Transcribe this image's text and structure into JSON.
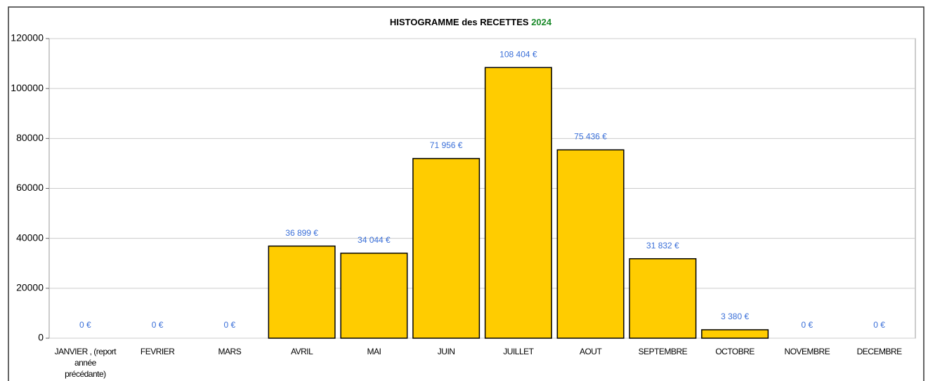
{
  "chart_data": {
    "type": "bar",
    "title": "HISTOGRAMME des RECETTES",
    "title_highlight": "2024",
    "categories": [
      "JANVIER , (report année précédante)",
      "FEVRIER",
      "MARS",
      "AVRIL",
      "MAI",
      "JUIN",
      "JUILLET",
      "AOUT",
      "SEPTEMBRE",
      "OCTOBRE",
      "NOVEMBRE",
      "DECEMBRE"
    ],
    "values": [
      0,
      0,
      0,
      36899,
      34044,
      71956,
      108404,
      75436,
      31832,
      3380,
      0,
      0
    ],
    "value_labels": [
      "0 €",
      "0 €",
      "0 €",
      "36 899 €",
      "34 044 €",
      "71 956 €",
      "108 404 €",
      "75 436 €",
      "31 832 €",
      "3 380 €",
      "0 €",
      "0 €"
    ],
    "color": "#ffcc00",
    "ylim": [
      0,
      120000
    ],
    "yticks": [
      0,
      20000,
      40000,
      60000,
      80000,
      100000,
      120000
    ],
    "grid": true
  }
}
